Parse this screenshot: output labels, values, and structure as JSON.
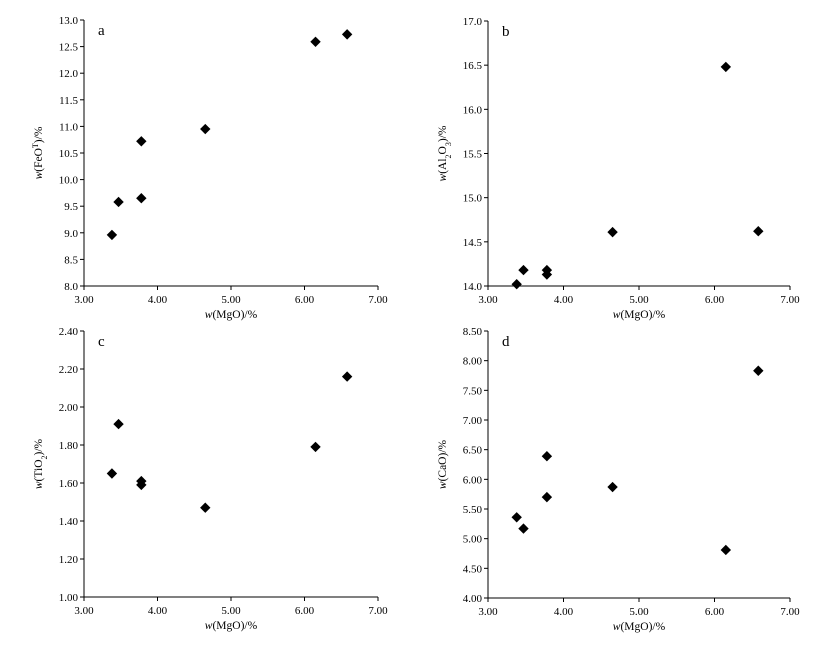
{
  "chart_data": [
    {
      "type": "scatter",
      "panel_label": "a",
      "xlabel": {
        "prefix": "w",
        "text": "(MgO)/%"
      },
      "ylabel": {
        "prefix": "w",
        "parts": [
          "(FeO",
          "T",
          ")/%"
        ]
      },
      "xlim": [
        3.0,
        7.0
      ],
      "ylim": [
        8.0,
        13.0
      ],
      "xticks": [
        3.0,
        4.0,
        5.0,
        6.0,
        7.0
      ],
      "xtick_labels": [
        "3.00",
        "4.00",
        "5.00",
        "6.00",
        "7.00"
      ],
      "yticks": [
        8.0,
        8.5,
        9.0,
        9.5,
        10.0,
        10.5,
        11.0,
        11.5,
        12.0,
        12.5,
        13.0
      ],
      "ytick_labels": [
        "8.0",
        "8.5",
        "9.0",
        "9.5",
        "10.0",
        "10.5",
        "11.0",
        "11.5",
        "12.0",
        "12.5",
        "13.0"
      ],
      "marker": "diamond",
      "points": [
        {
          "x": 3.38,
          "y": 8.96
        },
        {
          "x": 3.47,
          "y": 9.58
        },
        {
          "x": 3.78,
          "y": 9.65
        },
        {
          "x": 3.78,
          "y": 10.72
        },
        {
          "x": 4.65,
          "y": 10.95
        },
        {
          "x": 6.15,
          "y": 12.59
        },
        {
          "x": 6.58,
          "y": 12.73
        }
      ]
    },
    {
      "type": "scatter",
      "panel_label": "b",
      "xlabel": {
        "prefix": "w",
        "text": "(MgO)/%"
      },
      "ylabel": {
        "prefix": "w",
        "parts": [
          "(Al",
          "2",
          "O",
          "3",
          ")/%"
        ]
      },
      "xlim": [
        3.0,
        7.0
      ],
      "ylim": [
        14.0,
        17.0
      ],
      "xticks": [
        3.0,
        4.0,
        5.0,
        6.0,
        7.0
      ],
      "xtick_labels": [
        "3.00",
        "4.00",
        "5.00",
        "6.00",
        "7.00"
      ],
      "yticks": [
        14.0,
        14.5,
        15.0,
        15.5,
        16.0,
        16.5,
        17.0
      ],
      "ytick_labels": [
        "14.0",
        "14.5",
        "15.0",
        "15.5",
        "16.0",
        "16.5",
        "17.0"
      ],
      "marker": "diamond",
      "points": [
        {
          "x": 3.38,
          "y": 14.02
        },
        {
          "x": 3.47,
          "y": 14.18
        },
        {
          "x": 3.78,
          "y": 14.13
        },
        {
          "x": 3.78,
          "y": 14.18
        },
        {
          "x": 4.65,
          "y": 14.61
        },
        {
          "x": 6.15,
          "y": 16.48
        },
        {
          "x": 6.58,
          "y": 14.62
        }
      ]
    },
    {
      "type": "scatter",
      "panel_label": "c",
      "xlabel": {
        "prefix": "w",
        "text": "(MgO)/%"
      },
      "ylabel": {
        "prefix": "w",
        "parts": [
          "(TiO",
          "2",
          ")/%"
        ]
      },
      "xlim": [
        3.0,
        7.0
      ],
      "ylim": [
        1.0,
        2.4
      ],
      "xticks": [
        3.0,
        4.0,
        5.0,
        6.0,
        7.0
      ],
      "xtick_labels": [
        "3.00",
        "4.00",
        "5.00",
        "6.00",
        "7.00"
      ],
      "yticks": [
        1.0,
        1.2,
        1.4,
        1.6,
        1.8,
        2.0,
        2.2,
        2.4
      ],
      "ytick_labels": [
        "1.00",
        "1.20",
        "1.40",
        "1.60",
        "1.80",
        "2.00",
        "2.20",
        "2.40"
      ],
      "marker": "diamond",
      "points": [
        {
          "x": 3.38,
          "y": 1.65
        },
        {
          "x": 3.47,
          "y": 1.91
        },
        {
          "x": 3.78,
          "y": 1.61
        },
        {
          "x": 3.78,
          "y": 1.59
        },
        {
          "x": 4.65,
          "y": 1.47
        },
        {
          "x": 6.15,
          "y": 1.79
        },
        {
          "x": 6.58,
          "y": 2.16
        }
      ]
    },
    {
      "type": "scatter",
      "panel_label": "d",
      "xlabel": {
        "prefix": "w",
        "text": "(MgO)/%"
      },
      "ylabel": {
        "prefix": "w",
        "parts": [
          "(CaO)/%"
        ]
      },
      "xlim": [
        3.0,
        7.0
      ],
      "ylim": [
        4.0,
        8.5
      ],
      "xticks": [
        3.0,
        4.0,
        5.0,
        6.0,
        7.0
      ],
      "xtick_labels": [
        "3.00",
        "4.00",
        "5.00",
        "6.00",
        "7.00"
      ],
      "yticks": [
        4.0,
        4.5,
        5.0,
        5.5,
        6.0,
        6.5,
        7.0,
        7.5,
        8.0,
        8.5
      ],
      "ytick_labels": [
        "4.00",
        "4.50",
        "5.00",
        "5.50",
        "6.00",
        "6.50",
        "7.00",
        "7.50",
        "8.00",
        "8.50"
      ],
      "marker": "diamond",
      "points": [
        {
          "x": 3.38,
          "y": 5.36
        },
        {
          "x": 3.47,
          "y": 5.17
        },
        {
          "x": 3.78,
          "y": 5.7
        },
        {
          "x": 3.78,
          "y": 6.39
        },
        {
          "x": 4.65,
          "y": 5.87
        },
        {
          "x": 6.15,
          "y": 4.81
        },
        {
          "x": 6.58,
          "y": 7.83
        }
      ]
    }
  ]
}
